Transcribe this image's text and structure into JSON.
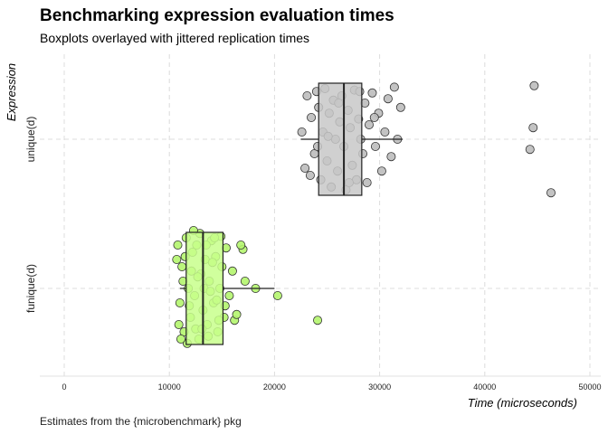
{
  "chart_data": {
    "type": "boxplot",
    "title": "Benchmarking expression evaluation times",
    "subtitle": "Boxplots overlayed with jittered replication times",
    "caption": "Estimates from the {microbenchmark} pkg",
    "xlabel": "Time (microseconds)",
    "ylabel": "Expression",
    "xlim": [
      -2500,
      51000
    ],
    "x_ticks": [
      0,
      10000,
      20000,
      30000,
      40000,
      50000
    ],
    "grid": true,
    "legend": "none",
    "series": [
      {
        "name": "unique(d)",
        "fill": "#c8c8c8",
        "point_color": "#bdbdbd",
        "box": {
          "whisker_low": 22500,
          "q1": 24200,
          "median": 26600,
          "q3": 28300,
          "whisker_high": 32200
        },
        "points": [
          [
            44700,
            0.37
          ],
          [
            44600,
            0.08
          ],
          [
            44300,
            -0.07
          ],
          [
            46300,
            -0.37
          ],
          [
            22600,
            0.05
          ],
          [
            22900,
            -0.2
          ],
          [
            23100,
            0.3
          ],
          [
            23500,
            0.15
          ],
          [
            23800,
            -0.1
          ],
          [
            24000,
            0.33
          ],
          [
            24200,
            0.22
          ],
          [
            24400,
            -0.28
          ],
          [
            24600,
            0.05
          ],
          [
            24800,
            0.35
          ],
          [
            25000,
            -0.15
          ],
          [
            25200,
            0.18
          ],
          [
            25400,
            -0.33
          ],
          [
            25600,
            0.27
          ],
          [
            25800,
            0.0
          ],
          [
            26000,
            -0.22
          ],
          [
            26200,
            0.12
          ],
          [
            26400,
            0.3
          ],
          [
            26600,
            -0.05
          ],
          [
            26800,
            -0.35
          ],
          [
            27000,
            0.2
          ],
          [
            27200,
            0.08
          ],
          [
            27400,
            -0.18
          ],
          [
            27600,
            0.34
          ],
          [
            27800,
            -0.28
          ],
          [
            28000,
            0.14
          ],
          [
            28200,
            0.0
          ],
          [
            28400,
            -0.1
          ],
          [
            28600,
            0.25
          ],
          [
            28800,
            -0.3
          ],
          [
            29000,
            0.1
          ],
          [
            29300,
            0.32
          ],
          [
            29600,
            -0.05
          ],
          [
            29900,
            0.18
          ],
          [
            30200,
            -0.22
          ],
          [
            30500,
            0.05
          ],
          [
            30800,
            0.28
          ],
          [
            31100,
            -0.12
          ],
          [
            31400,
            0.36
          ],
          [
            31700,
            0.0
          ],
          [
            32000,
            0.22
          ],
          [
            24100,
            -0.05
          ],
          [
            25100,
            0.02
          ],
          [
            26100,
            0.25
          ],
          [
            27100,
            -0.3
          ],
          [
            28100,
            0.33
          ],
          [
            23400,
            -0.25
          ],
          [
            29500,
            0.15
          ]
        ]
      },
      {
        "name": "funique(d)",
        "fill": "#c8ff8c",
        "point_color": "#b4f56e",
        "box": {
          "whisker_low": 11000,
          "q1": 11600,
          "median": 13200,
          "q3": 15100,
          "whisker_high": 20000
        },
        "points": [
          [
            20300,
            -0.05
          ],
          [
            18200,
            0.0
          ],
          [
            16200,
            -0.22
          ],
          [
            17000,
            0.27
          ],
          [
            24100,
            -0.22
          ],
          [
            10800,
            0.3
          ],
          [
            11000,
            -0.1
          ],
          [
            11200,
            0.15
          ],
          [
            11400,
            -0.3
          ],
          [
            11600,
            0.35
          ],
          [
            11800,
            0.0
          ],
          [
            12000,
            -0.2
          ],
          [
            12200,
            0.25
          ],
          [
            12400,
            -0.05
          ],
          [
            12600,
            0.3
          ],
          [
            12800,
            -0.35
          ],
          [
            13000,
            0.1
          ],
          [
            13200,
            -0.15
          ],
          [
            13400,
            0.2
          ],
          [
            13600,
            -0.25
          ],
          [
            13800,
            0.05
          ],
          [
            14000,
            0.33
          ],
          [
            14200,
            -0.1
          ],
          [
            14400,
            0.22
          ],
          [
            14600,
            -0.3
          ],
          [
            14800,
            0.0
          ],
          [
            15000,
            0.15
          ],
          [
            15200,
            -0.2
          ],
          [
            15400,
            0.28
          ],
          [
            15700,
            -0.05
          ],
          [
            16000,
            0.12
          ],
          [
            16400,
            -0.18
          ],
          [
            16800,
            0.3
          ],
          [
            17200,
            0.05
          ],
          [
            10900,
            -0.25
          ],
          [
            11300,
            0.05
          ],
          [
            11700,
            -0.38
          ],
          [
            12100,
            0.12
          ],
          [
            12500,
            -0.28
          ],
          [
            12900,
            0.38
          ],
          [
            13300,
            0.0
          ],
          [
            13700,
            -0.33
          ],
          [
            14100,
            0.18
          ],
          [
            14500,
            -0.08
          ],
          [
            14900,
            0.36
          ],
          [
            15300,
            -0.12
          ],
          [
            10700,
            0.2
          ],
          [
            11100,
            -0.35
          ],
          [
            11500,
            0.22
          ],
          [
            11900,
            -0.12
          ],
          [
            12300,
            0.4
          ],
          [
            12700,
            0.08
          ],
          [
            13100,
            -0.28
          ],
          [
            13500,
            0.3
          ],
          [
            13900,
            -0.02
          ],
          [
            14300,
            0.35
          ],
          [
            14700,
            -0.22
          ]
        ]
      }
    ]
  }
}
